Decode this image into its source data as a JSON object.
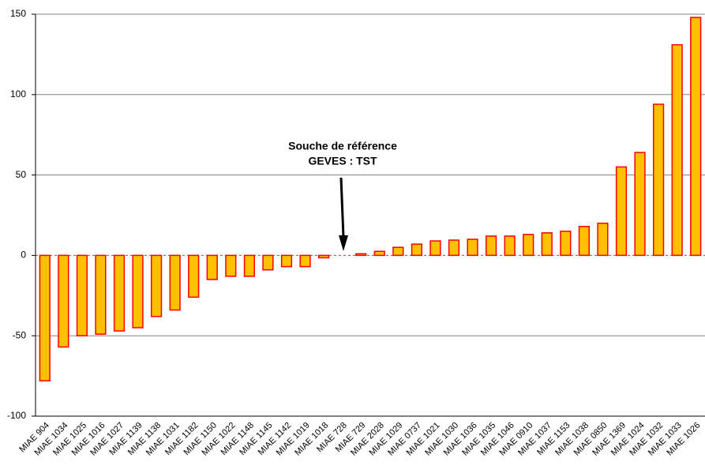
{
  "chart_data": {
    "type": "bar",
    "categories": [
      "MIAE 904",
      "MIAE 1034",
      "MIAE 1025",
      "MIAE 1016",
      "MIAE 1027",
      "MIAE 1139",
      "MIAE 1138",
      "MIAE 1031",
      "MIAE 1182",
      "MIAE 1150",
      "MIAE 1022",
      "MIAE 1148",
      "MIAE 1145",
      "MIAE 1142",
      "MIAE 1019",
      "MIAE 1018",
      "MIAE 728",
      "MIAE 729",
      "MIAE 2028",
      "MIAE 1029",
      "MIAE 0737",
      "MIAE 1021",
      "MIAE 1030",
      "MIAE 1036",
      "MIAE 1035",
      "MIAE 1046",
      "MIAE 0910",
      "MIAE 1037",
      "MIAE 1153",
      "MIAE 1038",
      "MIAE 0850",
      "MIAE 1369",
      "MIAE 1024",
      "MIAE 1032",
      "MIAE 1033",
      "MIAE 1026"
    ],
    "values": [
      -78,
      -57,
      -50,
      -49,
      -47,
      -45,
      -38,
      -34,
      -26,
      -15,
      -13,
      -13,
      -9,
      -7,
      -7,
      -1.5,
      0,
      1,
      2.5,
      5,
      7,
      9,
      9.5,
      10,
      12,
      12,
      13,
      14,
      15,
      18,
      20,
      55,
      64,
      94,
      131,
      148
    ],
    "color": "#ffc000",
    "edge_color": "#ff0000",
    "ylim": [
      -100,
      150
    ],
    "yticks": [
      -100,
      -50,
      0,
      50,
      100,
      150
    ],
    "grid": true,
    "annotations": [
      "Souche de référence",
      "GEVES : TST"
    ]
  }
}
